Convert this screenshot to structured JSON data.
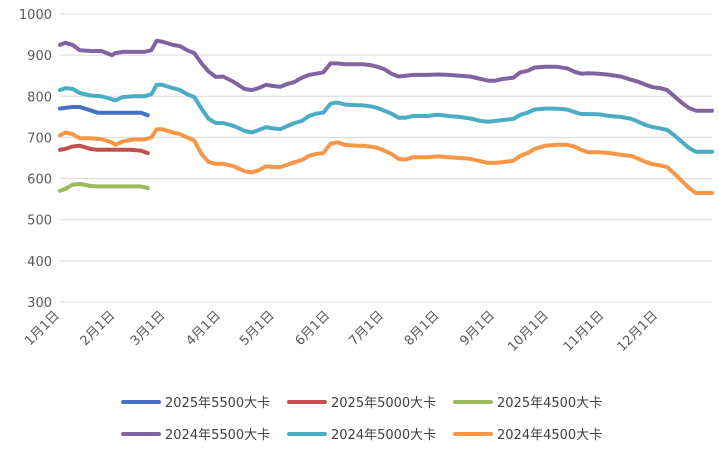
{
  "chart_data": {
    "type": "line",
    "ylim": [
      300,
      1000
    ],
    "yticks": [
      300,
      400,
      500,
      600,
      700,
      800,
      900,
      1000
    ],
    "x_unit": "day_of_year",
    "x_range": [
      1,
      365
    ],
    "xticks": [
      {
        "label": "1月1日",
        "day": 1
      },
      {
        "label": "2月1日",
        "day": 32
      },
      {
        "label": "3月1日",
        "day": 60
      },
      {
        "label": "4月1日",
        "day": 91
      },
      {
        "label": "5月1日",
        "day": 121
      },
      {
        "label": "6月1日",
        "day": 152
      },
      {
        "label": "7月1日",
        "day": 182
      },
      {
        "label": "8月1日",
        "day": 213
      },
      {
        "label": "9月1日",
        "day": 244
      },
      {
        "label": "10月1日",
        "day": 274
      },
      {
        "label": "11月1日",
        "day": 305
      },
      {
        "label": "12月1日",
        "day": 335
      }
    ],
    "grid": true,
    "legend": "bottom",
    "series": [
      {
        "name": "2025年5500大卡",
        "color": "#4472C4",
        "x": [
          1,
          4,
          8,
          12,
          18,
          22,
          30,
          40,
          46,
          50
        ],
        "y": [
          770,
          772,
          774,
          774,
          766,
          760,
          760,
          760,
          760,
          754
        ]
      },
      {
        "name": "2025年5000大卡",
        "color": "#C0504D",
        "x": [
          1,
          4,
          8,
          12,
          18,
          22,
          30,
          40,
          46,
          50
        ],
        "y": [
          670,
          672,
          678,
          680,
          672,
          670,
          670,
          670,
          668,
          662
        ]
      },
      {
        "name": "2025年4500大卡",
        "color": "#9BBB59",
        "x": [
          1,
          4,
          8,
          12,
          18,
          22,
          30,
          40,
          46,
          50
        ],
        "y": [
          570,
          575,
          585,
          587,
          582,
          581,
          581,
          581,
          581,
          577
        ]
      },
      {
        "name": "2024年5500大卡",
        "color": "#8064A2",
        "x": [
          1,
          4,
          8,
          12,
          18,
          24,
          30,
          32,
          36,
          42,
          48,
          52,
          55,
          58,
          64,
          68,
          72,
          76,
          80,
          84,
          88,
          92,
          98,
          104,
          108,
          112,
          116,
          120,
          124,
          128,
          132,
          136,
          140,
          144,
          148,
          152,
          156,
          160,
          166,
          170,
          174,
          178,
          182,
          186,
          190,
          194,
          198,
          202,
          206,
          212,
          218,
          224,
          230,
          236,
          240,
          244,
          248,
          254,
          258,
          262,
          266,
          272,
          278,
          284,
          288,
          292,
          296,
          302,
          308,
          314,
          320,
          324,
          328,
          332,
          336,
          340,
          344,
          348,
          352,
          356,
          360,
          365
        ],
        "y": [
          925,
          930,
          925,
          912,
          910,
          910,
          900,
          905,
          908,
          908,
          908,
          912,
          935,
          933,
          925,
          922,
          912,
          905,
          880,
          860,
          847,
          848,
          835,
          818,
          815,
          820,
          828,
          825,
          823,
          830,
          835,
          845,
          852,
          855,
          858,
          880,
          880,
          878,
          878,
          878,
          876,
          872,
          866,
          855,
          848,
          850,
          852,
          852,
          852,
          853,
          852,
          850,
          848,
          842,
          838,
          838,
          842,
          845,
          858,
          862,
          870,
          872,
          872,
          868,
          860,
          855,
          856,
          855,
          852,
          848,
          840,
          835,
          828,
          822,
          820,
          815,
          800,
          785,
          772,
          765,
          765,
          765
        ]
      },
      {
        "name": "2024年5000大卡",
        "color": "#4BACC6",
        "x": [
          1,
          4,
          8,
          12,
          18,
          24,
          30,
          32,
          36,
          42,
          48,
          52,
          55,
          58,
          64,
          68,
          72,
          76,
          80,
          84,
          88,
          92,
          98,
          104,
          108,
          112,
          116,
          120,
          124,
          128,
          132,
          136,
          140,
          144,
          148,
          152,
          156,
          160,
          166,
          170,
          174,
          178,
          182,
          186,
          190,
          194,
          198,
          202,
          206,
          212,
          218,
          224,
          230,
          236,
          240,
          244,
          248,
          254,
          258,
          262,
          266,
          272,
          278,
          284,
          288,
          292,
          296,
          302,
          308,
          314,
          320,
          324,
          328,
          332,
          336,
          340,
          344,
          348,
          352,
          356,
          360,
          365
        ],
        "y": [
          815,
          820,
          818,
          808,
          802,
          800,
          793,
          790,
          798,
          800,
          800,
          805,
          828,
          828,
          820,
          815,
          805,
          798,
          770,
          745,
          735,
          735,
          728,
          716,
          712,
          718,
          725,
          722,
          720,
          728,
          735,
          740,
          752,
          758,
          760,
          782,
          785,
          780,
          778,
          778,
          776,
          772,
          765,
          758,
          748,
          748,
          752,
          752,
          752,
          755,
          752,
          750,
          746,
          740,
          738,
          740,
          742,
          745,
          755,
          760,
          768,
          770,
          770,
          768,
          762,
          757,
          757,
          756,
          752,
          750,
          745,
          738,
          730,
          725,
          722,
          718,
          705,
          690,
          675,
          665,
          665,
          665
        ]
      },
      {
        "name": "2024年4500大卡",
        "color": "#F79646",
        "x": [
          1,
          4,
          8,
          12,
          18,
          24,
          30,
          32,
          36,
          42,
          48,
          52,
          55,
          58,
          64,
          68,
          72,
          76,
          80,
          84,
          88,
          92,
          98,
          104,
          108,
          112,
          116,
          120,
          124,
          128,
          132,
          136,
          140,
          144,
          148,
          152,
          156,
          160,
          166,
          170,
          174,
          178,
          182,
          186,
          190,
          194,
          198,
          202,
          206,
          212,
          218,
          224,
          230,
          236,
          240,
          244,
          248,
          254,
          258,
          262,
          266,
          272,
          278,
          284,
          288,
          292,
          296,
          302,
          308,
          314,
          320,
          324,
          328,
          332,
          336,
          340,
          344,
          348,
          352,
          356,
          360,
          365
        ],
        "y": [
          705,
          712,
          708,
          698,
          698,
          696,
          688,
          682,
          690,
          695,
          695,
          700,
          720,
          720,
          712,
          708,
          700,
          692,
          660,
          640,
          636,
          636,
          630,
          618,
          615,
          620,
          630,
          628,
          628,
          634,
          640,
          645,
          655,
          660,
          662,
          685,
          688,
          682,
          680,
          680,
          678,
          675,
          668,
          660,
          648,
          646,
          652,
          652,
          652,
          654,
          652,
          650,
          648,
          642,
          638,
          638,
          640,
          643,
          655,
          662,
          672,
          680,
          682,
          682,
          678,
          670,
          664,
          664,
          662,
          658,
          655,
          648,
          640,
          635,
          632,
          628,
          612,
          595,
          578,
          565,
          565,
          565
        ]
      }
    ]
  }
}
